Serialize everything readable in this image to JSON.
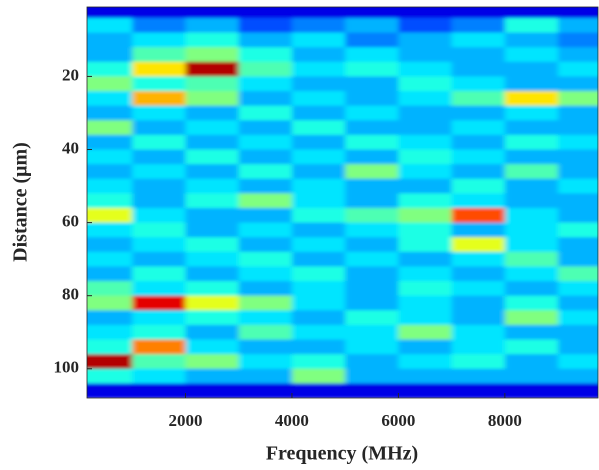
{
  "chart_data": {
    "type": "heatmap",
    "x_label": "Frequency (MHz)",
    "y_label": "Distance (μm)",
    "colormap": "jet",
    "y_reverse": true,
    "xlim": [
      150,
      9750
    ],
    "ylim": [
      1,
      108
    ],
    "xticks": [
      2000,
      4000,
      6000,
      8000
    ],
    "yticks": [
      20,
      40,
      60,
      80,
      100
    ],
    "x": [
      500,
      1500,
      2500,
      3500,
      4500,
      5500,
      6500,
      7500,
      8500,
      9500
    ],
    "y": [
      2,
      6,
      10,
      14,
      18,
      22,
      26,
      30,
      34,
      38,
      42,
      46,
      50,
      54,
      58,
      62,
      66,
      70,
      74,
      78,
      82,
      86,
      90,
      94,
      98,
      102,
      106
    ],
    "values": [
      [
        0.1,
        0.1,
        0.1,
        0.1,
        0.1,
        0.1,
        0.1,
        0.1,
        0.1,
        0.1
      ],
      [
        0.35,
        0.25,
        0.3,
        0.2,
        0.25,
        0.3,
        0.2,
        0.25,
        0.4,
        0.3
      ],
      [
        0.3,
        0.35,
        0.4,
        0.3,
        0.35,
        0.25,
        0.3,
        0.35,
        0.3,
        0.25
      ],
      [
        0.3,
        0.45,
        0.5,
        0.4,
        0.3,
        0.35,
        0.3,
        0.3,
        0.35,
        0.3
      ],
      [
        0.4,
        0.65,
        0.95,
        0.45,
        0.35,
        0.4,
        0.35,
        0.3,
        0.3,
        0.35
      ],
      [
        0.5,
        0.4,
        0.45,
        0.35,
        0.3,
        0.3,
        0.4,
        0.35,
        0.3,
        0.3
      ],
      [
        0.35,
        0.7,
        0.5,
        0.3,
        0.35,
        0.3,
        0.35,
        0.45,
        0.65,
        0.5
      ],
      [
        0.3,
        0.35,
        0.3,
        0.4,
        0.3,
        0.35,
        0.3,
        0.3,
        0.35,
        0.3
      ],
      [
        0.5,
        0.3,
        0.35,
        0.3,
        0.4,
        0.3,
        0.3,
        0.35,
        0.3,
        0.3
      ],
      [
        0.3,
        0.4,
        0.3,
        0.35,
        0.3,
        0.4,
        0.35,
        0.3,
        0.4,
        0.35
      ],
      [
        0.35,
        0.3,
        0.4,
        0.3,
        0.35,
        0.3,
        0.4,
        0.35,
        0.3,
        0.3
      ],
      [
        0.3,
        0.35,
        0.3,
        0.4,
        0.3,
        0.5,
        0.35,
        0.3,
        0.45,
        0.3
      ],
      [
        0.35,
        0.3,
        0.35,
        0.3,
        0.35,
        0.3,
        0.3,
        0.4,
        0.3,
        0.35
      ],
      [
        0.4,
        0.3,
        0.4,
        0.5,
        0.35,
        0.3,
        0.4,
        0.35,
        0.3,
        0.3
      ],
      [
        0.6,
        0.35,
        0.3,
        0.3,
        0.4,
        0.45,
        0.5,
        0.8,
        0.35,
        0.3
      ],
      [
        0.35,
        0.4,
        0.3,
        0.35,
        0.3,
        0.35,
        0.4,
        0.3,
        0.35,
        0.4
      ],
      [
        0.3,
        0.35,
        0.4,
        0.3,
        0.35,
        0.3,
        0.4,
        0.6,
        0.35,
        0.3
      ],
      [
        0.35,
        0.3,
        0.35,
        0.4,
        0.3,
        0.35,
        0.3,
        0.35,
        0.45,
        0.3
      ],
      [
        0.3,
        0.4,
        0.3,
        0.35,
        0.4,
        0.3,
        0.35,
        0.3,
        0.35,
        0.45
      ],
      [
        0.45,
        0.35,
        0.4,
        0.3,
        0.35,
        0.3,
        0.4,
        0.35,
        0.3,
        0.35
      ],
      [
        0.5,
        0.9,
        0.6,
        0.5,
        0.35,
        0.3,
        0.35,
        0.3,
        0.4,
        0.3
      ],
      [
        0.3,
        0.35,
        0.4,
        0.35,
        0.3,
        0.4,
        0.35,
        0.3,
        0.5,
        0.35
      ],
      [
        0.35,
        0.4,
        0.3,
        0.45,
        0.35,
        0.35,
        0.5,
        0.35,
        0.3,
        0.3
      ],
      [
        0.4,
        0.75,
        0.35,
        0.3,
        0.3,
        0.35,
        0.3,
        0.35,
        0.4,
        0.3
      ],
      [
        0.95,
        0.45,
        0.5,
        0.35,
        0.4,
        0.3,
        0.35,
        0.4,
        0.3,
        0.35
      ],
      [
        0.4,
        0.35,
        0.3,
        0.3,
        0.5,
        0.3,
        0.3,
        0.3,
        0.3,
        0.3
      ],
      [
        0.1,
        0.1,
        0.1,
        0.1,
        0.1,
        0.1,
        0.1,
        0.1,
        0.1,
        0.1
      ]
    ]
  }
}
